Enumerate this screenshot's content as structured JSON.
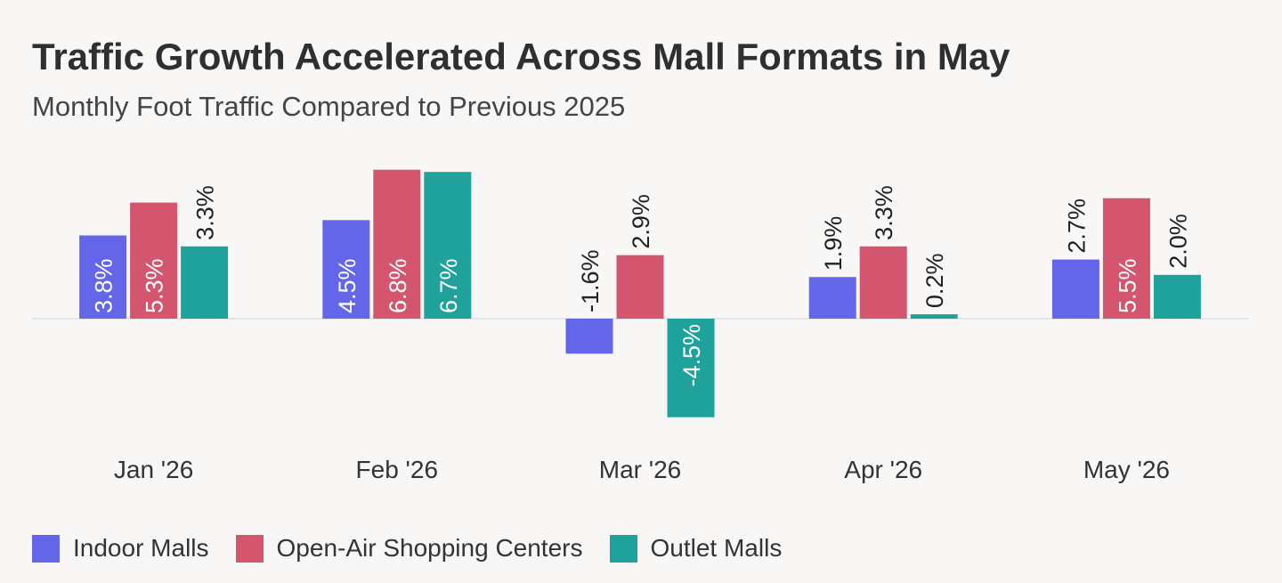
{
  "title": "Traffic Growth Accelerated Across Mall Formats in May",
  "subtitle": "Monthly Foot Traffic Compared to Previous 2025",
  "chart_data": {
    "type": "bar",
    "categories": [
      "Jan '26",
      "Feb '26",
      "Mar '26",
      "Apr '26",
      "May '26"
    ],
    "series": [
      {
        "name": "Indoor Malls",
        "color": "#6366e8",
        "values": [
          3.8,
          4.5,
          -1.6,
          1.9,
          2.7
        ],
        "labels": [
          "3.8%",
          "4.5%",
          "-1.6%",
          "1.9%",
          "2.7%"
        ]
      },
      {
        "name": "Open-Air Shopping Centers",
        "color": "#d4556e",
        "values": [
          5.3,
          6.8,
          2.9,
          3.3,
          5.5
        ],
        "labels": [
          "5.3%",
          "6.8%",
          "2.9%",
          "3.3%",
          "5.5%"
        ]
      },
      {
        "name": "Outlet Malls",
        "color": "#1fa19c",
        "values": [
          3.3,
          6.7,
          -4.5,
          0.2,
          2.0
        ],
        "labels": [
          "3.3%",
          "6.7%",
          "-4.5%",
          "0.2%",
          "2.0%"
        ]
      }
    ],
    "ylim": [
      -6,
      8
    ],
    "legend": "bottom-left",
    "grid": false
  }
}
